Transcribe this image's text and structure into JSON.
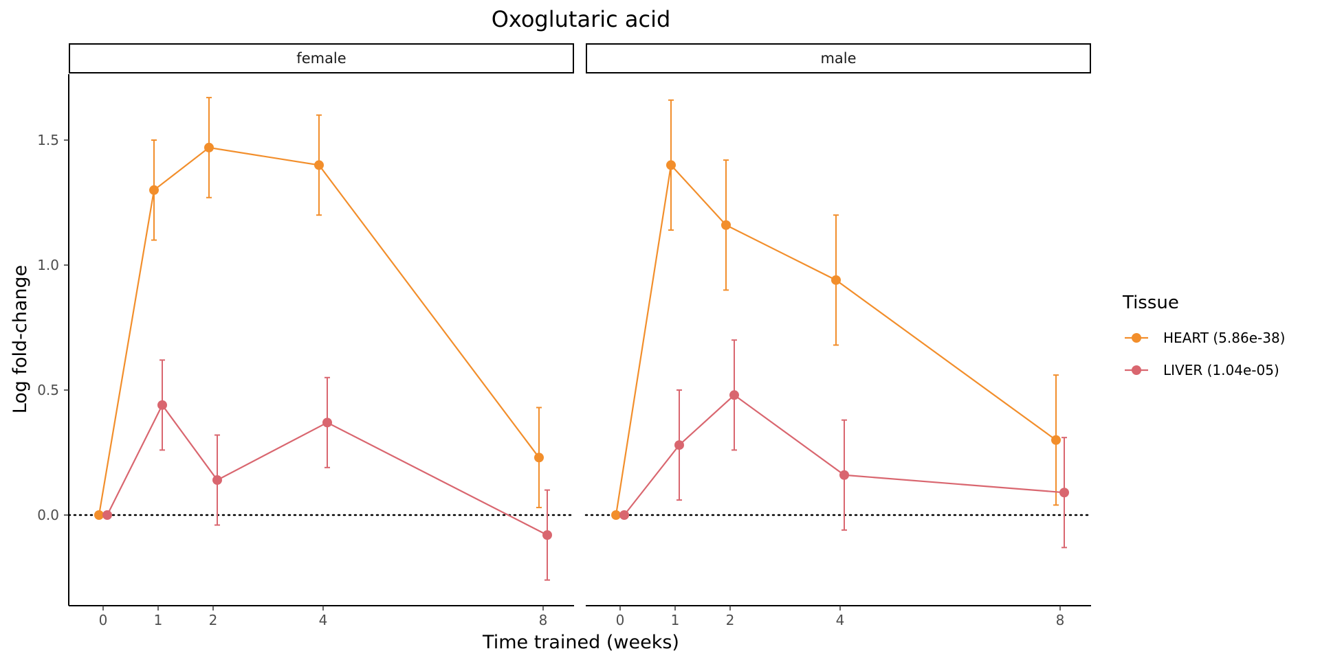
{
  "chart_data": {
    "type": "line",
    "title": "Oxoglutaric acid",
    "xlabel": "Time trained (weeks)",
    "ylabel": "Log fold-change",
    "x_ticks": [
      0,
      1,
      2,
      4,
      8
    ],
    "y_ticks": [
      0.0,
      0.5,
      1.0,
      1.5
    ],
    "y_tick_labels": [
      "0.0",
      "0.5",
      "1.0",
      "1.5"
    ],
    "ylim": [
      -0.36,
      1.76
    ],
    "xlim": [
      -0.6,
      8.6
    ],
    "reference_line": {
      "y": 0,
      "style": "dotted"
    },
    "legend": {
      "title": "Tissue",
      "position": "right",
      "entries": [
        "HEART (5.86e-38)",
        "LIVER (1.04e-05)"
      ]
    },
    "panels": [
      {
        "label": "female",
        "series": [
          {
            "name": "HEART (5.86e-38)",
            "color": "#F28E2B",
            "x": [
              0,
              1,
              2,
              4,
              8
            ],
            "y": [
              0.0,
              1.3,
              1.47,
              1.4,
              0.23
            ],
            "err_low": [
              0.0,
              1.1,
              1.27,
              1.2,
              0.03
            ],
            "err_high": [
              0.0,
              1.5,
              1.67,
              1.6,
              0.43
            ]
          },
          {
            "name": "LIVER (1.04e-05)",
            "color": "#D9666F",
            "x": [
              0,
              1,
              2,
              4,
              8
            ],
            "y": [
              0.0,
              0.44,
              0.14,
              0.37,
              -0.08
            ],
            "err_low": [
              0.0,
              0.26,
              -0.04,
              0.19,
              -0.26
            ],
            "err_high": [
              0.0,
              0.62,
              0.32,
              0.55,
              0.1
            ]
          }
        ]
      },
      {
        "label": "male",
        "series": [
          {
            "name": "HEART (5.86e-38)",
            "color": "#F28E2B",
            "x": [
              0,
              1,
              2,
              4,
              8
            ],
            "y": [
              0.0,
              1.4,
              1.16,
              0.94,
              0.3
            ],
            "err_low": [
              0.0,
              1.14,
              0.9,
              0.68,
              0.04
            ],
            "err_high": [
              0.0,
              1.66,
              1.42,
              1.2,
              0.56
            ]
          },
          {
            "name": "LIVER (1.04e-05)",
            "color": "#D9666F",
            "x": [
              0,
              1,
              2,
              4,
              8
            ],
            "y": [
              0.0,
              0.28,
              0.48,
              0.16,
              0.09
            ],
            "err_low": [
              0.0,
              0.06,
              0.26,
              -0.06,
              -0.13
            ],
            "err_high": [
              0.0,
              0.5,
              0.7,
              0.38,
              0.31
            ]
          }
        ]
      }
    ]
  }
}
